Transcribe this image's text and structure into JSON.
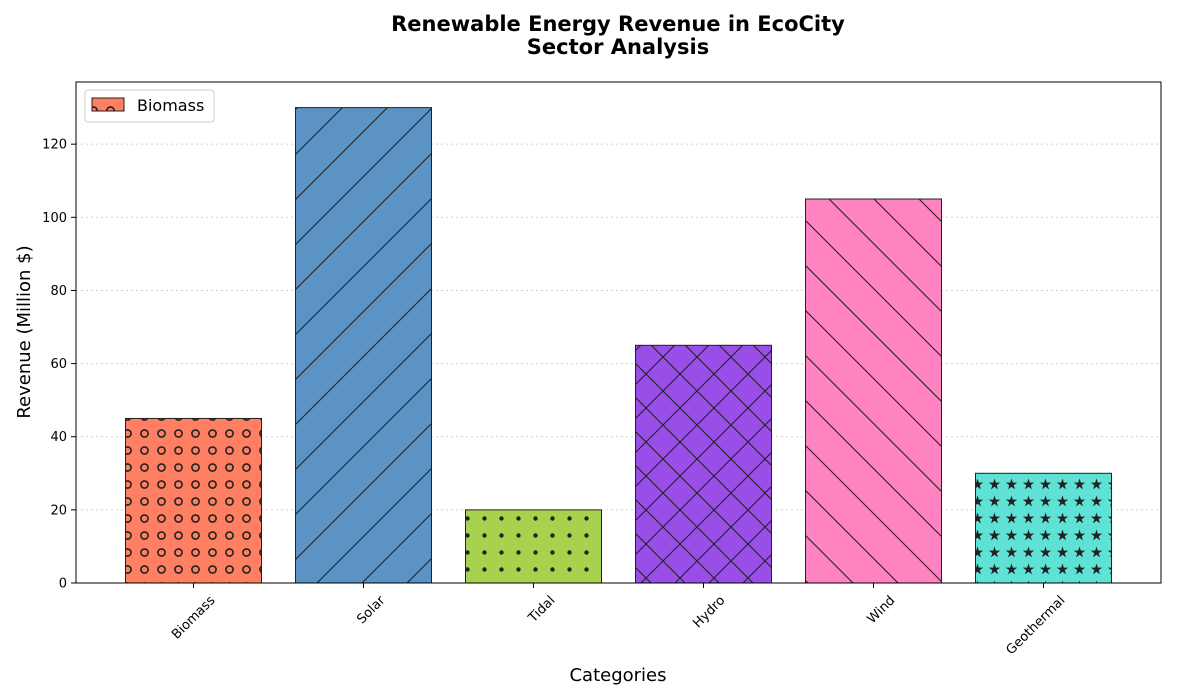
{
  "chart_data": {
    "type": "bar",
    "title": "Renewable Energy Revenue in EcoCity",
    "subtitle": "Sector Analysis",
    "xlabel": "Categories",
    "ylabel": "Revenue (Million $)",
    "categories": [
      "Biomass",
      "Solar",
      "Tidal",
      "Hydro",
      "Wind",
      "Geothermal"
    ],
    "values": [
      45,
      130,
      20,
      65,
      105,
      30
    ],
    "colors": [
      "#ff7f63",
      "#5b93c4",
      "#a8d24e",
      "#9a4ee8",
      "#ff82c1",
      "#5ee2d4"
    ],
    "hatches": [
      "circles",
      "forward-diagonal",
      "dots",
      "crosshatch",
      "back-diagonal",
      "stars"
    ],
    "ylim": [
      0,
      137
    ],
    "yticks": [
      0,
      20,
      40,
      60,
      80,
      100,
      120
    ],
    "grid": "y-dotted",
    "legend": {
      "position": "top-left",
      "entries": [
        "Biomass"
      ]
    }
  }
}
